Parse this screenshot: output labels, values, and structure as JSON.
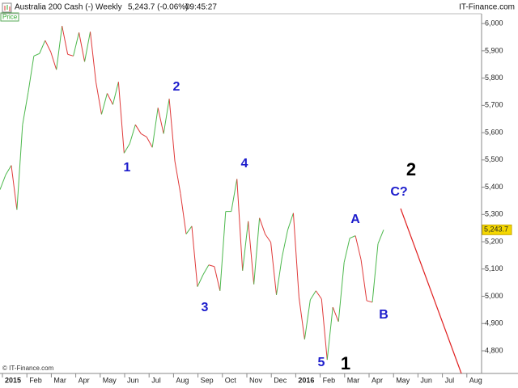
{
  "chart_data": {
    "type": "line",
    "title": "Australia 200 Cash (-)",
    "period": "Weekly",
    "quote": "5,243.7 (-0.06%)",
    "time": "09:45:27",
    "source": "IT-Finance.com",
    "copyright": "© IT-Finance.com",
    "panel_label": "Price",
    "values": [
      5391,
      5445,
      5480,
      5317,
      5629,
      5748,
      5881,
      5890,
      5938,
      5896,
      5831,
      5991,
      5887,
      5881,
      5967,
      5860,
      5970,
      5786,
      5667,
      5744,
      5703,
      5786,
      5525,
      5560,
      5629,
      5596,
      5584,
      5546,
      5691,
      5596,
      5724,
      5495,
      5376,
      5228,
      5257,
      5035,
      5079,
      5115,
      5109,
      5020,
      5311,
      5311,
      5430,
      5094,
      5275,
      5044,
      5287,
      5228,
      5198,
      5005,
      5144,
      5243,
      5305,
      4996,
      4842,
      4987,
      5020,
      4990,
      4767,
      4960,
      4907,
      5124,
      5213,
      5222,
      5134,
      4984,
      4978,
      5192,
      5243.7
    ],
    "last_label": "5,243.7",
    "up_color": "#4cb84c",
    "down_color": "#e03a3a",
    "ylim": [
      4717,
      6036
    ],
    "yticks": [
      {
        "value": 4800,
        "label": "4,800"
      },
      {
        "value": 4900,
        "label": "4,900"
      },
      {
        "value": 5000,
        "label": "5,000"
      },
      {
        "value": 5100,
        "label": "5,100"
      },
      {
        "value": 5200,
        "label": "5,200"
      },
      {
        "value": 5300,
        "label": "5,300"
      },
      {
        "value": 5400,
        "label": "5,400"
      },
      {
        "value": 5500,
        "label": "5,500"
      },
      {
        "value": 5600,
        "label": "5,600"
      },
      {
        "value": 5700,
        "label": "5,700"
      },
      {
        "value": 5800,
        "label": "5,800"
      },
      {
        "value": 5900,
        "label": "5,900"
      },
      {
        "value": 6000,
        "label": "6,000"
      }
    ],
    "xticks": [
      "2015",
      "Feb",
      "Mar",
      "Apr",
      "May",
      "Jun",
      "Jul",
      "Aug",
      "Sep",
      "Oct",
      "Nov",
      "Dec",
      "2016",
      "Feb",
      "Mar",
      "Apr",
      "May",
      "Jun",
      "Jul",
      "Aug"
    ],
    "annotations": [
      "1",
      "2",
      "3",
      "4",
      "5",
      "A",
      "B",
      "C?",
      "2",
      "1"
    ]
  }
}
